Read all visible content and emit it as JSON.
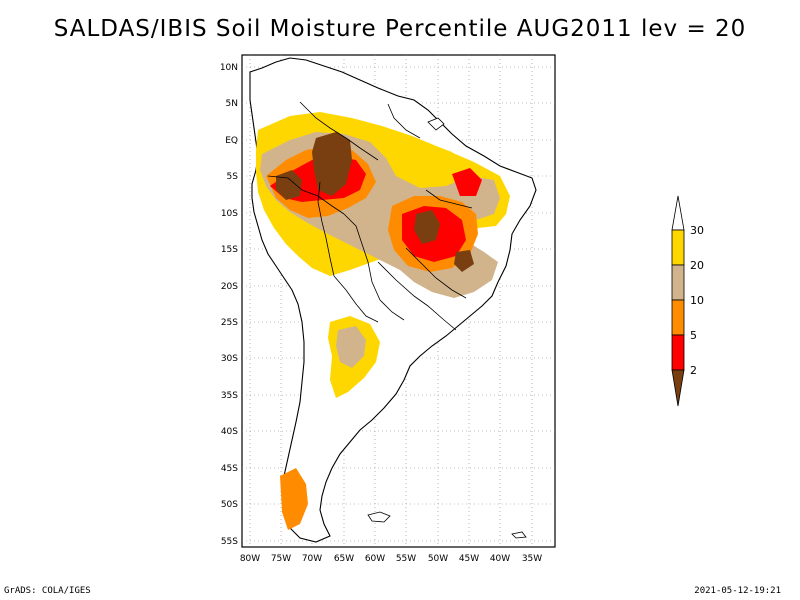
{
  "title": "SALDAS/IBIS Soil Moisture Percentile AUG2011 lev = 20",
  "footer": {
    "left": "GrADS: COLA/IGES",
    "right": "2021-05-12-19:21"
  },
  "map": {
    "region": "South America",
    "lat_labels": [
      "10N",
      "5N",
      "EQ",
      "5S",
      "10S",
      "15S",
      "20S",
      "25S",
      "30S",
      "35S",
      "40S",
      "45S",
      "50S",
      "55S"
    ],
    "lon_labels": [
      "80W",
      "75W",
      "70W",
      "65W",
      "60W",
      "55W",
      "50W",
      "45W",
      "40W",
      "35W"
    ]
  },
  "legend": {
    "colors": {
      "lt2": "#7a3f10",
      "2to5": "#ff0000",
      "5to10": "#ff8c00",
      "10to20": "#d2b48c",
      "20to30": "#ffd700",
      "gt30": "#ffffff"
    },
    "labels": [
      "2",
      "5",
      "10",
      "20",
      "30"
    ]
  }
}
